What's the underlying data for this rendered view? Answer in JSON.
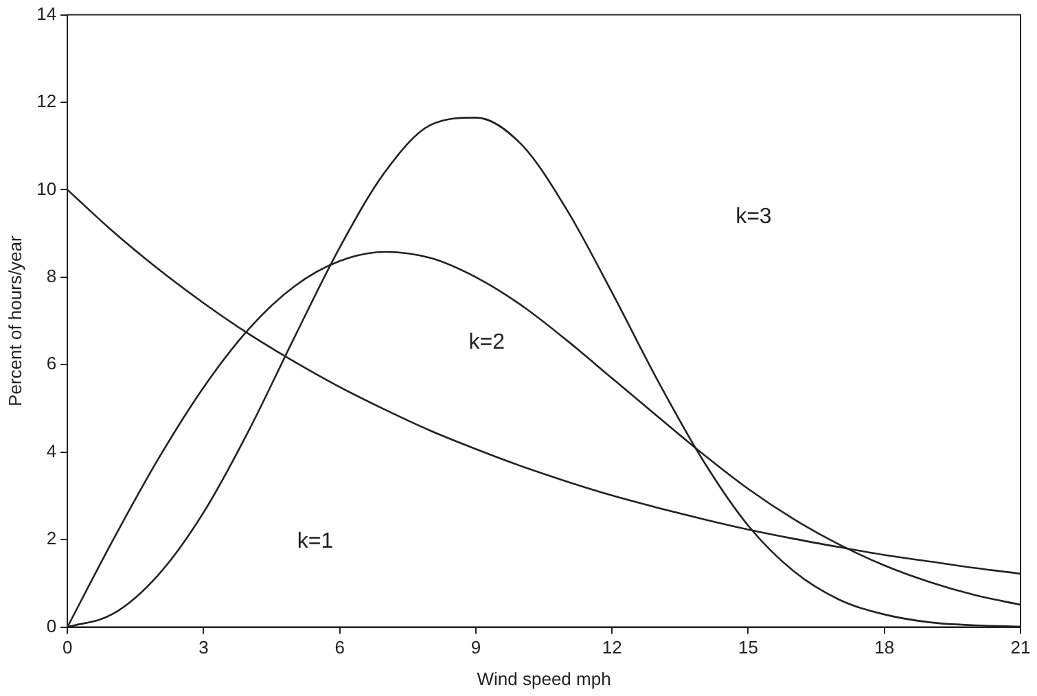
{
  "chart_data": {
    "type": "line",
    "xlabel": "Wind speed mph",
    "ylabel": "Percent of hours/year",
    "x": [
      0,
      1,
      2,
      3,
      4,
      5,
      6,
      7,
      8,
      9,
      10,
      11,
      12,
      13,
      14,
      15,
      16,
      17,
      18,
      19,
      20,
      21
    ],
    "series": [
      {
        "color": "#222222",
        "values": [
          10,
          9.05,
          8.19,
          7.41,
          6.7,
          6.07,
          5.49,
          4.97,
          4.49,
          4.07,
          3.68,
          3.33,
          3.01,
          2.73,
          2.47,
          2.23,
          2.02,
          1.83,
          1.65,
          1.5,
          1.35,
          1.22
        ]
      },
      {
        "color": "#222222",
        "values": [
          0,
          1.98,
          3.84,
          5.48,
          6.82,
          7.79,
          8.37,
          8.58,
          8.44,
          8,
          7.36,
          6.56,
          5.69,
          4.82,
          3.96,
          3.16,
          2.47,
          1.89,
          1.41,
          1.03,
          0.73,
          0.51
        ]
      },
      {
        "color": "#222222",
        "values": [
          0,
          0.3,
          1.19,
          2.62,
          4.5,
          6.62,
          8.68,
          10.41,
          11.48,
          11.65,
          11.04,
          9.55,
          7.65,
          5.65,
          3.82,
          2.32,
          1.28,
          0.63,
          0.29,
          0.11,
          0.04,
          0.01
        ]
      }
    ],
    "annotations": [
      "k=1",
      "k=2",
      "k=3"
    ],
    "xlim": [
      0,
      21
    ],
    "xticks": [
      0,
      3,
      6,
      9,
      12,
      15,
      18,
      21
    ],
    "ylim": [
      0,
      14
    ],
    "yticks": [
      0,
      2,
      4,
      6,
      8,
      10,
      12,
      14
    ],
    "grid": false,
    "legend": false,
    "marker": "none",
    "line_style": "solid"
  }
}
